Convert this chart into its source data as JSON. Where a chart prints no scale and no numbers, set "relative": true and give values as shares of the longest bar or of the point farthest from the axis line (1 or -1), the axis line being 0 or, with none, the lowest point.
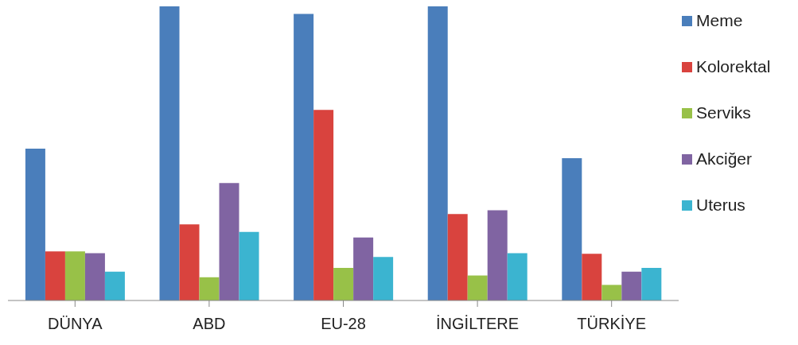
{
  "chart_data": {
    "type": "bar",
    "relative": true,
    "categories": [
      "DÜNYA",
      "ABD",
      "EU-28",
      "İNGİLTERE",
      "TÜRKİYE"
    ],
    "series": [
      {
        "name": "Meme",
        "color": "#4a7ebb",
        "values": [
          0.516,
          1,
          0.974,
          1,
          0.484
        ]
      },
      {
        "name": "Kolorektal",
        "color": "#d9433e",
        "values": [
          0.167,
          0.259,
          0.648,
          0.294,
          0.159
        ]
      },
      {
        "name": "Serviks",
        "color": "#98c148",
        "values": [
          0.167,
          0.079,
          0.111,
          0.085,
          0.053
        ]
      },
      {
        "name": "Akciğer",
        "color": "#8064a2",
        "values": [
          0.161,
          0.399,
          0.214,
          0.307,
          0.098
        ]
      },
      {
        "name": "Uterus",
        "color": "#3bb4d0",
        "values": [
          0.098,
          0.233,
          0.148,
          0.161,
          0.111
        ]
      }
    ],
    "legend": "right",
    "grid": false
  }
}
